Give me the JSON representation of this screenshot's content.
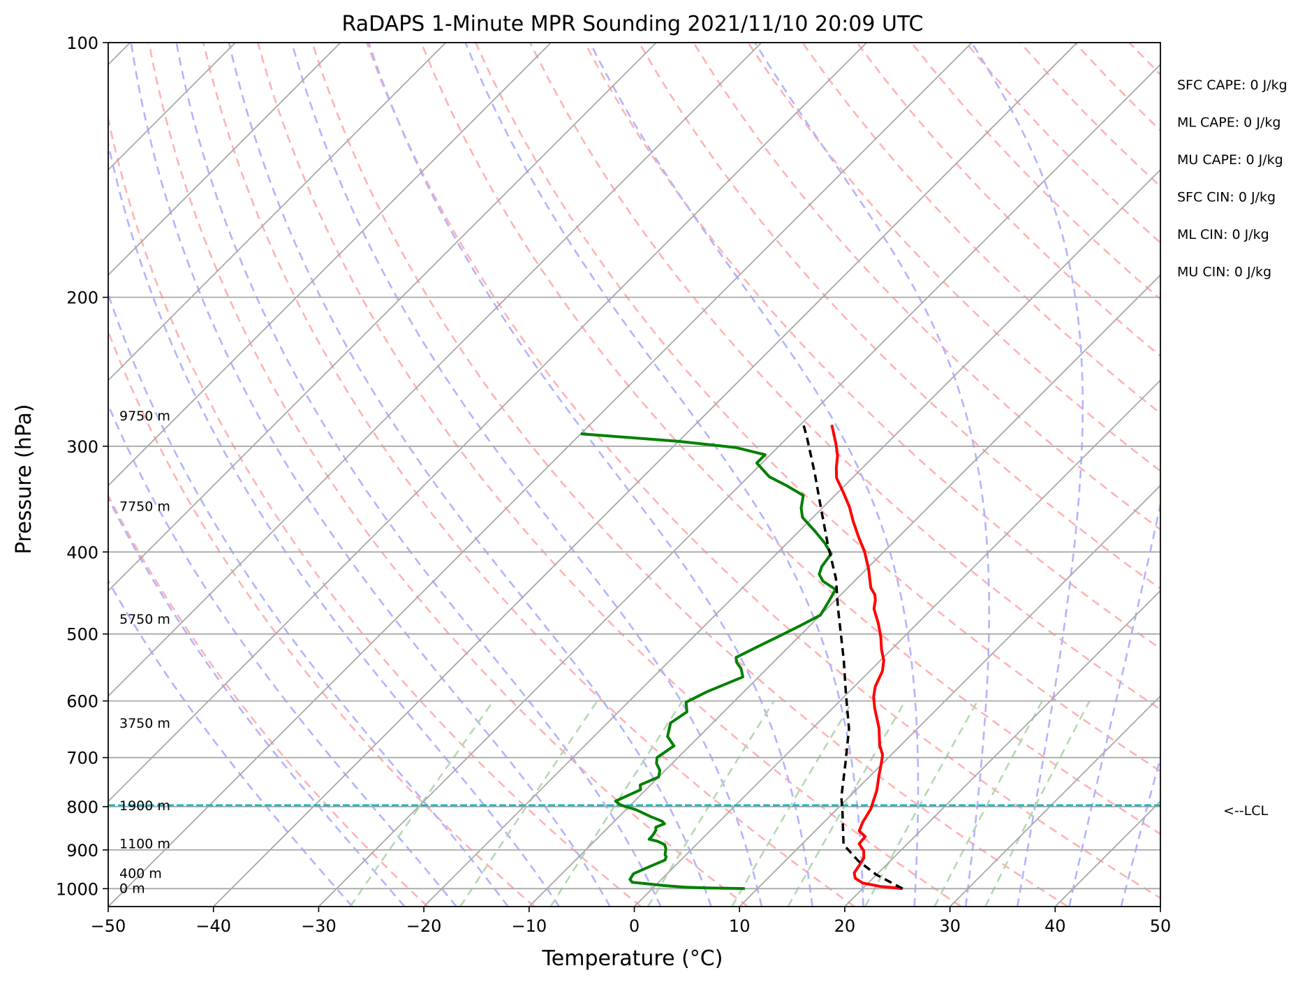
{
  "chart_data": {
    "type": "line",
    "title": "RaDAPS 1-Minute MPR Sounding 2021/11/10 20:09 UTC",
    "xlabel": "Temperature (°C)",
    "ylabel": "Pressure (hPa)",
    "xlim": [
      -50,
      50
    ],
    "ylim": [
      1050,
      100
    ],
    "y_scale": "log",
    "grid": true,
    "x_ticks": [
      "−50",
      "−40",
      "−30",
      "−20",
      "−10",
      "0",
      "10",
      "20",
      "30",
      "40",
      "50"
    ],
    "y_ticks": [
      "100",
      "200",
      "300",
      "400",
      "500",
      "600",
      "700",
      "800",
      "900",
      "1000"
    ],
    "series": [
      {
        "color": "#ff0000",
        "points": [
          [
            23.8,
            1000
          ],
          [
            21.5,
            994
          ],
          [
            19.5,
            985
          ],
          [
            18.3,
            972
          ],
          [
            17.7,
            958
          ],
          [
            17.5,
            941
          ],
          [
            17.2,
            920
          ],
          [
            16.5,
            902
          ],
          [
            15.4,
            885
          ],
          [
            15.3,
            868
          ],
          [
            14.2,
            855
          ],
          [
            13.7,
            835
          ],
          [
            13.2,
            805
          ],
          [
            12.0,
            765
          ],
          [
            10.8,
            735
          ],
          [
            9.9,
            712
          ],
          [
            9.2,
            695
          ],
          [
            8.0,
            677
          ],
          [
            6.3,
            646
          ],
          [
            4.0,
            612
          ],
          [
            2.8,
            593
          ],
          [
            2.0,
            577
          ],
          [
            1.2,
            553
          ],
          [
            0.3,
            537
          ],
          [
            -0.9,
            522
          ],
          [
            -2.2,
            504
          ],
          [
            -3.7,
            486
          ],
          [
            -5.5,
            467
          ],
          [
            -6.2,
            456
          ],
          [
            -6.8,
            449
          ],
          [
            -7.8,
            441
          ],
          [
            -9.8,
            419
          ],
          [
            -11.8,
            400
          ],
          [
            -13.8,
            384
          ],
          [
            -15.8,
            368
          ],
          [
            -17.5,
            354
          ],
          [
            -19.5,
            340
          ],
          [
            -21.5,
            327
          ],
          [
            -22.5,
            318
          ],
          [
            -23.5,
            308
          ],
          [
            -24.8,
            298
          ],
          [
            -27.0,
            283
          ]
        ],
        "width": 4
      },
      {
        "color": "#008000",
        "points": [
          [
            8.8,
            1000
          ],
          [
            7.0,
            999
          ],
          [
            5.0,
            998
          ],
          [
            3.0,
            996
          ],
          [
            1.0,
            992
          ],
          [
            -0.5,
            988
          ],
          [
            -2.5,
            983
          ],
          [
            -3.0,
            975
          ],
          [
            -3.2,
            960
          ],
          [
            -2.5,
            945
          ],
          [
            -1.5,
            925
          ],
          [
            -1.7,
            917
          ],
          [
            -2.0,
            912
          ],
          [
            -2.5,
            897
          ],
          [
            -3.0,
            887
          ],
          [
            -4.0,
            879
          ],
          [
            -5.0,
            874
          ],
          [
            -5.0,
            866
          ],
          [
            -5.2,
            853
          ],
          [
            -5.5,
            846
          ],
          [
            -5.0,
            838
          ],
          [
            -5.5,
            832
          ],
          [
            -7.0,
            822
          ],
          [
            -9.0,
            807
          ],
          [
            -11.0,
            796
          ],
          [
            -11.8,
            788
          ],
          [
            -10.5,
            764
          ],
          [
            -11.0,
            754
          ],
          [
            -10.0,
            738
          ],
          [
            -10.5,
            725
          ],
          [
            -11.5,
            711
          ],
          [
            -12.0,
            700
          ],
          [
            -11.5,
            678
          ],
          [
            -13.0,
            661
          ],
          [
            -14.0,
            637
          ],
          [
            -13.5,
            618
          ],
          [
            -14.5,
            602
          ],
          [
            -13.5,
            585
          ],
          [
            -11.5,
            562
          ],
          [
            -12.5,
            549
          ],
          [
            -13.5,
            540
          ],
          [
            -14.0,
            533
          ],
          [
            -13.0,
            518
          ],
          [
            -12.0,
            504
          ],
          [
            -11.0,
            490
          ],
          [
            -10.0,
            475
          ],
          [
            -10.5,
            458
          ],
          [
            -11.0,
            443
          ],
          [
            -13.0,
            433
          ],
          [
            -14.0,
            425
          ],
          [
            -14.5,
            416
          ],
          [
            -14.8,
            402
          ],
          [
            -16.5,
            390
          ],
          [
            -18.5,
            378
          ],
          [
            -21.0,
            364
          ],
          [
            -22.0,
            355
          ],
          [
            -23.0,
            343
          ],
          [
            -25.5,
            334
          ],
          [
            -28.0,
            326
          ],
          [
            -30.5,
            314
          ],
          [
            -30.5,
            307
          ],
          [
            -34.0,
            301
          ],
          [
            -40.0,
            296
          ],
          [
            -50.0,
            290
          ]
        ],
        "width": 4
      },
      {
        "color": "#000000",
        "dashed": true,
        "points": [
          [
            23.8,
            1000
          ],
          [
            20.0,
            963
          ],
          [
            17.0,
            928
          ],
          [
            14.0,
            887
          ],
          [
            10.5,
            805
          ],
          [
            9.3,
            780
          ],
          [
            6.5,
            712
          ],
          [
            3.5,
            647
          ],
          [
            0.0,
            590
          ],
          [
            -3.5,
            537
          ],
          [
            -6.5,
            497
          ],
          [
            -9.0,
            466
          ],
          [
            -12.0,
            430
          ],
          [
            -16.0,
            392
          ],
          [
            -20.0,
            356
          ],
          [
            -24.0,
            323
          ],
          [
            -28.0,
            294
          ],
          [
            -30.0,
            281
          ]
        ],
        "width": 3.5
      }
    ],
    "lcl": {
      "pressure": 797,
      "label": "<--LCL"
    },
    "height_labels": [
      {
        "text": "9750 m",
        "pressure": 276
      },
      {
        "text": "7750 m",
        "pressure": 353
      },
      {
        "text": "5750 m",
        "pressure": 480
      },
      {
        "text": "3750 m",
        "pressure": 637
      },
      {
        "text": "1900 m",
        "pressure": 797
      },
      {
        "text": "1100 m",
        "pressure": 884
      },
      {
        "text": "400 m",
        "pressure": 958
      },
      {
        "text": "0 m",
        "pressure": 998
      }
    ],
    "stats": [
      "SFC CAPE: 0 J/kg",
      "ML CAPE: 0 J/kg",
      "MU CAPE: 0 J/kg",
      "SFC CIN: 0 J/kg",
      "ML CIN: 0 J/kg",
      "MU CIN: 0 J/kg"
    ],
    "colors": {
      "isotherm": "#a8a8a8",
      "dry_adiabat": "#ffb3b3",
      "moist_adiabat": "#b3b3ff",
      "mixing_ratio": "#b3d9b3",
      "lcl_line": "#00c0c0"
    }
  }
}
